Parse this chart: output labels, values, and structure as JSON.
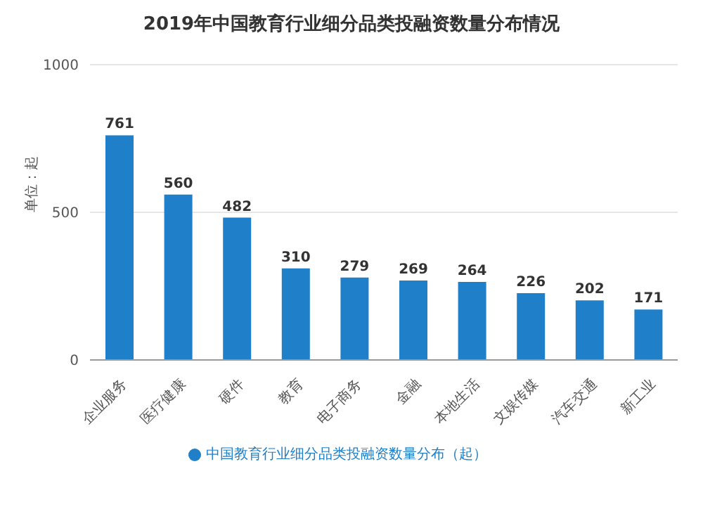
{
  "chart_data": {
    "type": "bar",
    "title": "2019年中国教育行业细分品类投融资数量分布情况",
    "ylabel": "单位：起",
    "categories": [
      "企业服务",
      "医疗健康",
      "硬件",
      "教育",
      "电子商务",
      "金融",
      "本地生活",
      "文娱传媒",
      "汽车交通",
      "新工业"
    ],
    "series": [
      {
        "name": "中国教育行业细分品类投融资数量分布（起）",
        "color": "#1f7fc8",
        "values": [
          761,
          560,
          482,
          310,
          279,
          269,
          264,
          226,
          202,
          171
        ]
      }
    ],
    "ylim": [
      0,
      1000
    ],
    "yticks": [
      0,
      500,
      1000
    ],
    "grid": "y",
    "legend": "bottom",
    "data_labels": true
  }
}
